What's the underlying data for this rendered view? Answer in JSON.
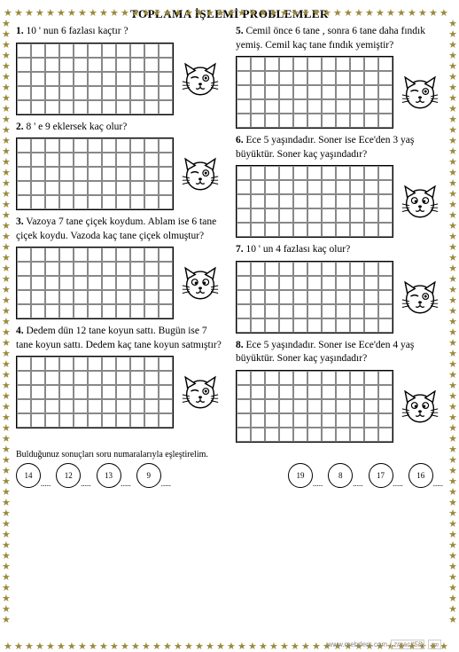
{
  "title": "TOPLAMA İŞLEMİ PROBLEMLER",
  "problems_left": [
    {
      "num": "1.",
      "text": "10 ' nun  6  fazlası kaçtır ?",
      "grid_cols": 11,
      "grid_rows": 5,
      "cat": "wink"
    },
    {
      "num": "2.",
      "text": "8 ' e  9  eklersek kaç olur?",
      "grid_cols": 11,
      "grid_rows": 5,
      "cat": "wink"
    },
    {
      "num": "3.",
      "text": "Vazoya 7 tane çiçek koydum. Ablam ise 6 tane çiçek koydu. Vazoda kaç tane çiçek olmuştur?",
      "grid_cols": 11,
      "grid_rows": 5,
      "cat": "look"
    },
    {
      "num": "4.",
      "text": "Dedem dün 12 tane koyun sattı. Bugün ise 7 tane koyun sattı. Dedem kaç tane koyun satmıştır?",
      "grid_cols": 11,
      "grid_rows": 5,
      "cat": "wink"
    }
  ],
  "problems_right": [
    {
      "num": "5.",
      "text": "Cemil önce 6 tane , sonra 6 tane daha fındık yemiş. Cemil kaç tane fındık yemiştir?",
      "grid_cols": 11,
      "grid_rows": 5,
      "cat": "wink"
    },
    {
      "num": "6.",
      "text": "Ece 5 yaşındadır. Soner ise Ece'den 3 yaş büyüktür. Soner kaç yaşındadır?",
      "grid_cols": 11,
      "grid_rows": 5,
      "cat": "look"
    },
    {
      "num": "7.",
      "text": "10 ' un  4  fazlası kaç olur?",
      "grid_cols": 11,
      "grid_rows": 5,
      "cat": "wink"
    },
    {
      "num": "8.",
      "text": "Ece 5 yaşındadır. Soner ise Ece'den 4 yaş büyüktür. Soner kaç yaşındadır?",
      "grid_cols": 11,
      "grid_rows": 5,
      "cat": "look"
    }
  ],
  "match_instruction": "Bulduğunuz sonuçları soru numaralarıyla eşleştirelim.",
  "circles_left": [
    "14",
    "12",
    "13",
    "9"
  ],
  "circles_right": [
    "19",
    "8",
    "17",
    "16"
  ],
  "footer_site": "www.mebders.com",
  "footer_user": "zmacit58",
  "footer_sig": "zm",
  "star_color": "#9a8a3a",
  "border_star_count_h": 42,
  "border_star_count_v": 58
}
